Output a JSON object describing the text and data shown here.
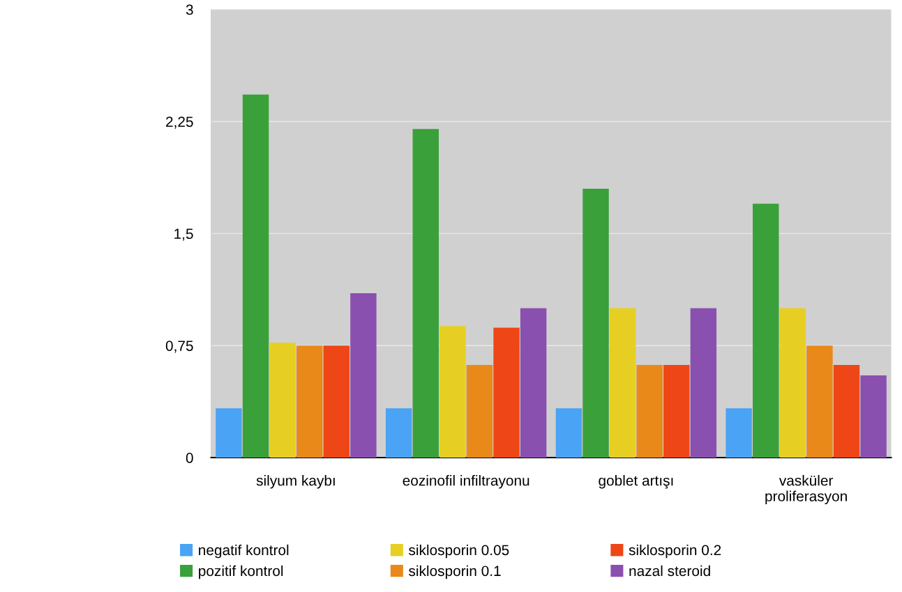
{
  "chart_data": {
    "type": "bar",
    "categories": [
      "silyum kaybı",
      "eozinofil infiltrayonu",
      "goblet artışı",
      "vasküler\nproliferasyon"
    ],
    "series": [
      {
        "name": "negatif kontrol",
        "color": "#4aa3f5",
        "values": [
          0.33,
          0.33,
          0.33,
          0.33
        ]
      },
      {
        "name": "pozitif kontrol",
        "color": "#3aa03a",
        "values": [
          2.43,
          2.2,
          1.8,
          1.7
        ]
      },
      {
        "name": "siklosporin 0.05",
        "color": "#e6cf22",
        "values": [
          0.77,
          0.88,
          1.0,
          1.0
        ]
      },
      {
        "name": "siklosporin 0.1",
        "color": "#e8891a",
        "values": [
          0.75,
          0.62,
          0.62,
          0.75
        ]
      },
      {
        "name": "siklosporin 0.2",
        "color": "#ee4616",
        "values": [
          0.75,
          0.87,
          0.62,
          0.62
        ]
      },
      {
        "name": "nazal steroid",
        "color": "#8a50b0",
        "values": [
          1.1,
          1.0,
          1.0,
          0.55
        ]
      }
    ],
    "ylim": [
      0,
      3
    ],
    "yticks": [
      0,
      {
        "value": 0.75,
        "label": "0,75"
      },
      {
        "value": 1.5,
        "label": "1,5"
      },
      {
        "value": 2.25,
        "label": "2,25"
      },
      3
    ],
    "grid": "y",
    "legend": "bottom"
  }
}
